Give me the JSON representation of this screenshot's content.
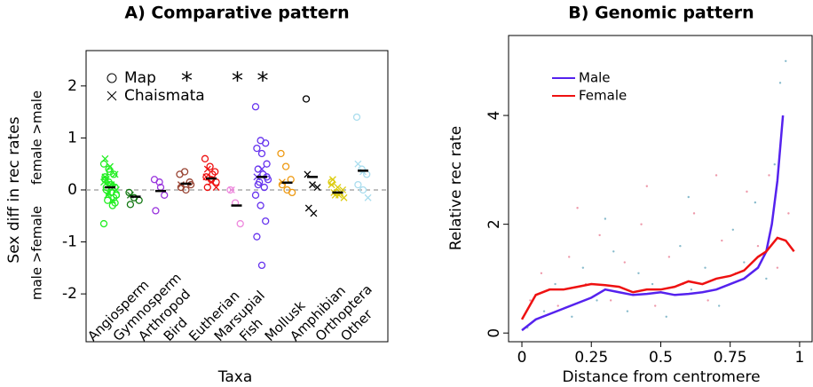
{
  "chart_data": [
    {
      "type": "strip",
      "title": "A) Comparative pattern",
      "xlabel": "Taxa",
      "ylabel": "Sex diff in rec rates",
      "ylabel_upper": "female >male",
      "ylabel_lower": "male >female",
      "ylim": [
        -2.92,
        2.68
      ],
      "yticks": [
        -2,
        -1,
        0,
        1,
        2
      ],
      "ref_line": 0,
      "map_label": "Map",
      "chiasmata_label": "Chaismata",
      "taxa": [
        {
          "name": "Angiosperm",
          "color": "#22ee22",
          "mean": 0.05,
          "map": [
            0.5,
            0.4,
            0.3,
            0.2,
            0.1,
            0.05,
            0,
            -0.05,
            -0.1,
            -0.2,
            -0.3,
            -0.65,
            0.15,
            -0.15,
            0.25,
            0.35,
            -0.25,
            0.05,
            0.1,
            -0.1
          ],
          "chiasmata": [
            0.6,
            0.45,
            0.3,
            0.2,
            0.1,
            0,
            -0.1,
            -0.2,
            0.15,
            -0.05,
            0.05,
            0.25
          ]
        },
        {
          "name": "Gymnosperm",
          "color": "#117711",
          "mean": -0.13,
          "map": [
            -0.05,
            -0.15,
            -0.2,
            -0.28
          ],
          "chiasmata": [
            -0.1
          ]
        },
        {
          "name": "Arthropod",
          "color": "#9933dd",
          "mean": -0.02,
          "map": [
            0.2,
            0.15,
            -0.1,
            -0.4,
            0.05
          ],
          "chiasmata": []
        },
        {
          "name": "Bird",
          "color": "#994433",
          "mean": 0.12,
          "star": "*",
          "map": [
            0.3,
            0.35,
            0.15,
            0.05,
            0,
            0.1
          ],
          "chiasmata": [
            0.1
          ]
        },
        {
          "name": "Eutherian",
          "color": "#ee1111",
          "mean": 0.22,
          "map": [
            0.6,
            0.45,
            0.35,
            0.25,
            0.2,
            0.15,
            0.05,
            0.3
          ],
          "chiasmata": [
            0.25,
            0.15,
            0.05,
            0.4
          ]
        },
        {
          "name": "Marsupial",
          "color": "#ee88dd",
          "mean": -0.3,
          "star": "*",
          "map": [
            0,
            -0.25,
            -0.65
          ],
          "chiasmata": [
            0
          ]
        },
        {
          "name": "Fish",
          "color": "#6633ee",
          "mean": 0.25,
          "star": "*",
          "map": [
            1.6,
            0.95,
            0.9,
            0.8,
            0.7,
            0.5,
            0.4,
            0.3,
            0.2,
            0.15,
            0.05,
            -0.1,
            -0.3,
            -0.6,
            -0.9,
            -1.45,
            0.25,
            0.1
          ],
          "chiasmata": [
            0.25,
            0.4
          ]
        },
        {
          "name": "Mollusk",
          "color": "#ee9911",
          "mean": 0.14,
          "map": [
            0.7,
            0.45,
            0.2,
            0.1,
            0,
            -0.05
          ],
          "chiasmata": [
            0.15
          ]
        },
        {
          "name": "Amphibian",
          "color": "#000000",
          "mean": 0.25,
          "map": [
            1.75
          ],
          "chiasmata": [
            0.3,
            0.1,
            0.05,
            -0.35,
            -0.45
          ]
        },
        {
          "name": "Orthoptera",
          "color": "#ddcc11",
          "mean": -0.05,
          "map": [
            0.15,
            -0.05
          ],
          "chiasmata": [
            0.2,
            0.05,
            0,
            -0.05,
            -0.1,
            -0.15,
            -0.1,
            -0.05,
            0.1
          ]
        },
        {
          "name": "Other",
          "color": "#aaddee",
          "mean": 0.37,
          "map": [
            1.4,
            0.4,
            0.3,
            0.1,
            0
          ],
          "chiasmata": [
            0.5,
            0.35,
            -0.15
          ]
        }
      ]
    },
    {
      "type": "line",
      "title": "B) Genomic pattern",
      "xlabel": "Distance from centromere",
      "ylabel": "Relative rec rate",
      "xlim": [
        -0.048,
        1.045
      ],
      "ylim": [
        -0.16,
        5.47
      ],
      "xticks": [
        0,
        0.25,
        0.5,
        0.75,
        1
      ],
      "yticks": [
        0,
        2,
        4
      ],
      "series": [
        {
          "name": "Male",
          "color": "#5522ee",
          "x": [
            0,
            0.05,
            0.1,
            0.15,
            0.2,
            0.25,
            0.3,
            0.35,
            0.4,
            0.45,
            0.5,
            0.55,
            0.6,
            0.65,
            0.7,
            0.75,
            0.8,
            0.85,
            0.88,
            0.9,
            0.92,
            0.94
          ],
          "y": [
            0.05,
            0.25,
            0.35,
            0.45,
            0.55,
            0.65,
            0.8,
            0.75,
            0.7,
            0.72,
            0.75,
            0.7,
            0.72,
            0.75,
            0.8,
            0.9,
            1.0,
            1.2,
            1.5,
            2.0,
            2.8,
            4.0
          ]
        },
        {
          "name": "Female",
          "color": "#ee1111",
          "x": [
            0,
            0.05,
            0.1,
            0.15,
            0.2,
            0.25,
            0.3,
            0.35,
            0.4,
            0.45,
            0.5,
            0.55,
            0.6,
            0.65,
            0.7,
            0.75,
            0.8,
            0.85,
            0.88,
            0.92,
            0.95,
            0.98
          ],
          "y": [
            0.25,
            0.7,
            0.8,
            0.8,
            0.85,
            0.9,
            0.88,
            0.85,
            0.75,
            0.8,
            0.8,
            0.85,
            0.95,
            0.9,
            1.0,
            1.05,
            1.15,
            1.4,
            1.5,
            1.75,
            1.7,
            1.5
          ]
        }
      ],
      "background": [
        {
          "color": "#88bbcc",
          "x": [
            0.02,
            0.08,
            0.12,
            0.18,
            0.22,
            0.27,
            0.33,
            0.38,
            0.42,
            0.47,
            0.52,
            0.57,
            0.61,
            0.66,
            0.71,
            0.76,
            0.8,
            0.84,
            0.88,
            0.91,
            0.93,
            0.95,
            0.3,
            0.6
          ],
          "y": [
            0.1,
            0.4,
            0.9,
            0.3,
            1.2,
            0.6,
            1.5,
            0.4,
            1.1,
            0.9,
            0.3,
            1.6,
            0.8,
            1.2,
            0.5,
            1.9,
            1.3,
            2.4,
            1.0,
            3.1,
            4.6,
            5.0,
            2.1,
            2.5
          ]
        },
        {
          "color": "#ee99aa",
          "x": [
            0.03,
            0.07,
            0.13,
            0.17,
            0.23,
            0.28,
            0.32,
            0.37,
            0.43,
            0.48,
            0.53,
            0.58,
            0.62,
            0.67,
            0.72,
            0.77,
            0.81,
            0.85,
            0.89,
            0.92,
            0.96,
            0.2,
            0.45,
            0.7
          ],
          "y": [
            0.6,
            1.1,
            0.5,
            1.4,
            0.9,
            1.8,
            0.6,
            1.3,
            2.0,
            0.5,
            1.4,
            0.9,
            2.2,
            0.6,
            1.7,
            1.1,
            2.6,
            1.6,
            2.9,
            1.2,
            2.2,
            2.3,
            2.7,
            2.9
          ]
        }
      ]
    }
  ]
}
